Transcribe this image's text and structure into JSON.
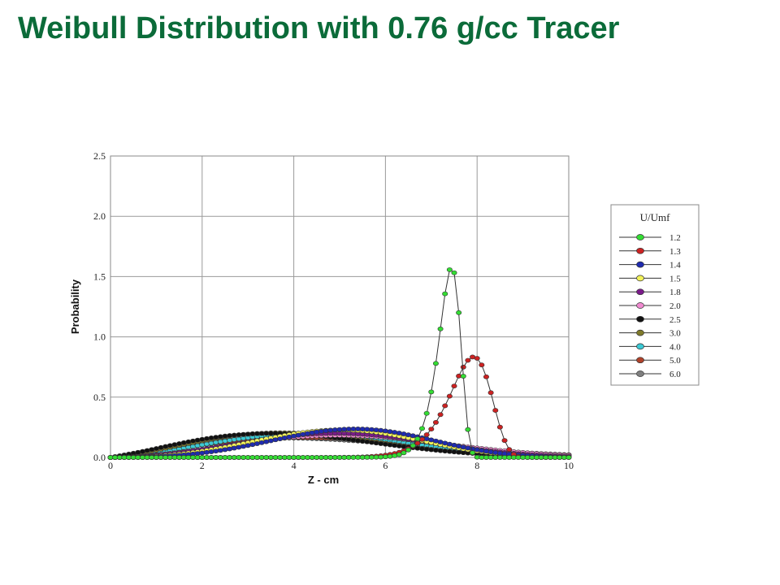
{
  "slide": {
    "title": "Weibull Distribution with 0.76 g/cc Tracer"
  },
  "chart_data": {
    "type": "line",
    "title": "",
    "xlabel": "Z - cm",
    "ylabel": "Probability",
    "xlim": [
      0,
      10
    ],
    "ylim": [
      0,
      2.5
    ],
    "xticks": [
      "0",
      "2",
      "4",
      "6",
      "8",
      "10"
    ],
    "yticks": [
      "0.0",
      "0.5",
      "1.0",
      "1.5",
      "2.0",
      "2.5"
    ],
    "grid": true,
    "legend_title": "U/Umf",
    "legend_position": "right",
    "series": [
      {
        "name": "1.2",
        "color": "#33dd33",
        "dist": {
          "k": 32,
          "lambda": 7.45
        }
      },
      {
        "name": "1.3",
        "color": "#cc2222",
        "dist": {
          "k": 18,
          "lambda": 7.95
        }
      },
      {
        "name": "1.4",
        "color": "#1f2bb0",
        "dist": {
          "k": 3.6,
          "lambda": 5.85
        }
      },
      {
        "name": "1.5",
        "color": "#f2f25a",
        "dist": {
          "k": 3.3,
          "lambda": 5.6
        }
      },
      {
        "name": "1.8",
        "color": "#7a1a8a",
        "dist": {
          "k": 2.9,
          "lambda": 5.7
        }
      },
      {
        "name": "2.0",
        "color": "#f08ad0",
        "dist": {
          "k": 2.7,
          "lambda": 5.9
        }
      },
      {
        "name": "2.5",
        "color": "#111111",
        "dist": {
          "k": 2.2,
          "lambda": 4.6
        }
      },
      {
        "name": "3.0",
        "color": "#7f7a2a",
        "dist": {
          "k": 2.35,
          "lambda": 4.7
        }
      },
      {
        "name": "4.0",
        "color": "#3cc9d4",
        "dist": {
          "k": 2.5,
          "lambda": 5.2
        }
      },
      {
        "name": "5.0",
        "color": "#b0422a",
        "dist": {
          "k": 2.2,
          "lambda": 5.6
        }
      },
      {
        "name": "6.0",
        "color": "#7f7f7f",
        "dist": {
          "k": 2.0,
          "lambda": 5.3
        }
      }
    ]
  }
}
